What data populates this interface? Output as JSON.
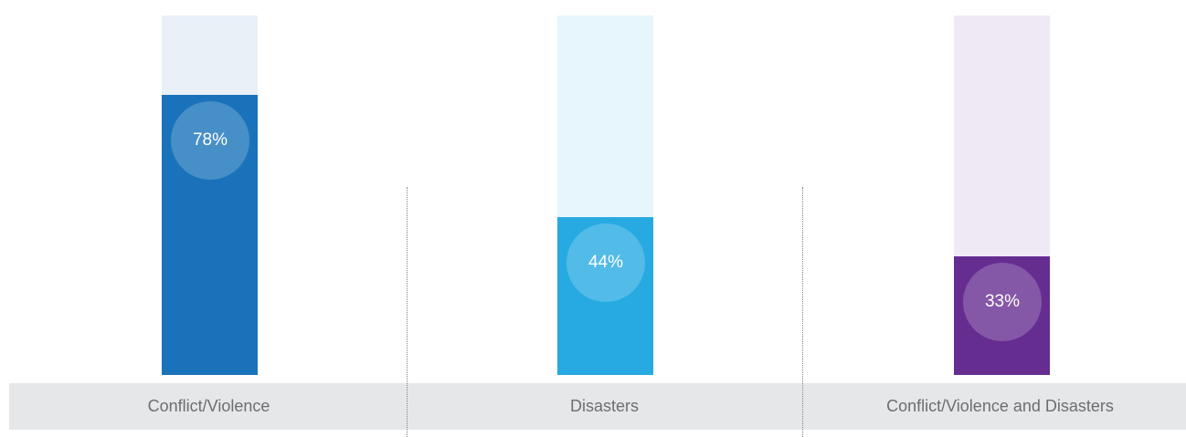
{
  "chart_data": {
    "type": "bar",
    "categories": [
      "Conflict/Violence",
      "Disasters",
      "Conflict/Violence and Disasters"
    ],
    "values": [
      78,
      44,
      33
    ],
    "data_labels": [
      "78%",
      "44%",
      "33%"
    ],
    "ylim": [
      0,
      100
    ],
    "grid": false,
    "colors": {
      "fill": [
        "#1a73ba",
        "#27aae1",
        "#662d91"
      ],
      "track": [
        "#e9f0f8",
        "#e7f5fc",
        "#efe8f5"
      ],
      "label_strip": "#e6e7e8",
      "label_text": "#6d6e71"
    }
  }
}
